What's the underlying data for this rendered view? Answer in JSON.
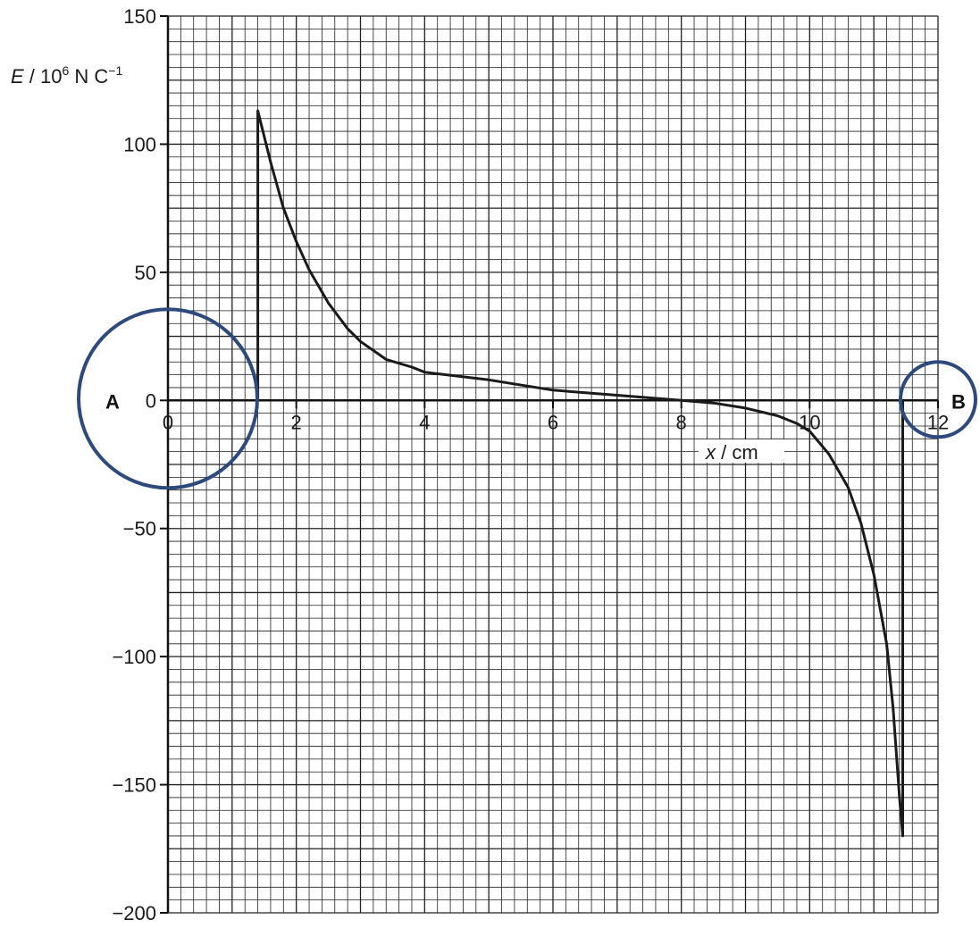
{
  "chart_data": {
    "type": "line",
    "xlabel": {
      "var": "x",
      "rest": " / cm"
    },
    "ylabel": {
      "var": "E",
      "rest": " / 10",
      "sup": "6",
      "unit": " N C",
      "unit_sup": "−1"
    },
    "xlim": [
      0,
      12
    ],
    "ylim": [
      -200,
      150
    ],
    "x_ticks": [
      0,
      2,
      4,
      6,
      8,
      10,
      12
    ],
    "x_tick_labels": [
      "0",
      "2",
      "4",
      "6",
      "8",
      "10",
      "12"
    ],
    "y_ticks": [
      150,
      100,
      50,
      0,
      -50,
      -100,
      -150,
      -200
    ],
    "y_tick_labels": [
      "150",
      "100",
      "50",
      "0",
      "−50",
      "−100",
      "−150",
      "−200"
    ],
    "grid": {
      "major_x": 0.2,
      "minor_y": 5
    },
    "series": [
      {
        "x": [
          1.4,
          1.4,
          1.6,
          1.8,
          2.0,
          2.2,
          2.5,
          2.8,
          3.0,
          3.4,
          3.8,
          4.0,
          5.0,
          6.0,
          7.0,
          8.0,
          8.5,
          9.0,
          9.5,
          9.8,
          10.0,
          10.3,
          10.6,
          10.8,
          11.0,
          11.2,
          11.3,
          11.4,
          11.45,
          11.45,
          11.45
        ],
        "y": [
          0,
          113,
          93,
          75,
          62,
          51,
          38,
          28,
          23,
          16,
          13,
          11,
          8,
          4,
          2,
          0,
          -1,
          -3,
          -6,
          -9,
          -12,
          -21,
          -34,
          -48,
          -68,
          -95,
          -120,
          -155,
          -170,
          -140,
          0
        ]
      }
    ],
    "annotations": [
      {
        "label": "A",
        "x": 0,
        "y": 0
      },
      {
        "label": "B",
        "x": 12,
        "y": 0
      }
    ],
    "circle_color": "#2d4a7c",
    "curve_color": "#1a1a1a"
  }
}
